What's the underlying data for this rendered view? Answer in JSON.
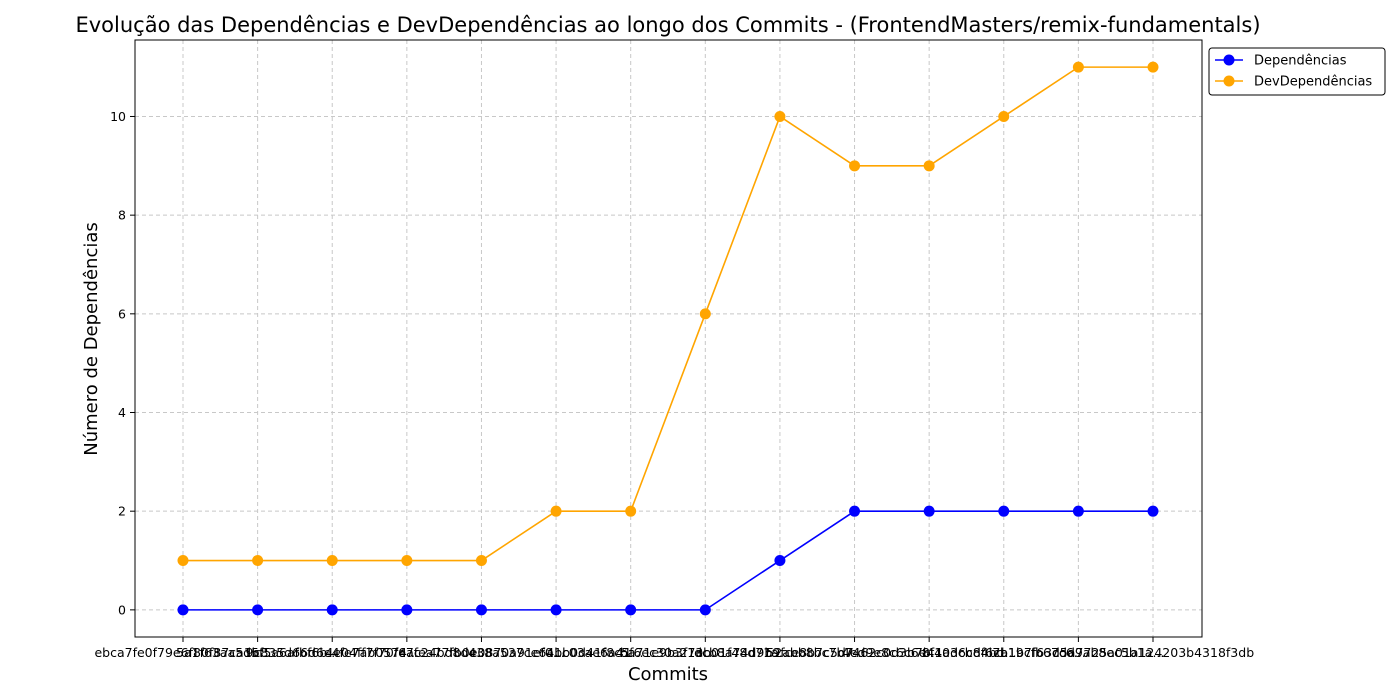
{
  "chart_data": {
    "type": "line",
    "title": "Evolução das Dependências e DevDependências ao longo dos Commits - (FrontendMasters/remix-fundamentals)",
    "xlabel": "Commits",
    "ylabel": "Número de Dependências",
    "ylim": [
      -0.55,
      11.55
    ],
    "yticks": [
      0,
      2,
      4,
      6,
      8,
      10
    ],
    "grid": true,
    "legend_position": "top-right-outside",
    "categories": [
      "ebca7fe0f79e6f80f87ca1b...",
      "5a1f63aa5d5f5a6afbf6b...",
      "9c835d66d6e4fe7ab0574...",
      "4e04ff7f70fe7c24bd8d4...",
      "6afea77fb0e0870a91ef0...",
      "e38a537ce6a1c03ae6a41...",
      "4bb0d41f8c5f6ec30a27e...",
      "ba71e9b3f13b01f48d71a...",
      "dcb8a74d9b9fce8b7c5d7...",
      "52abb8bc7b7462c0d3b7b...",
      "4ed9e8c6c6e41a3cb84bd...",
      "8f40d6cdf6cb19cfb67c6...",
      "7a1b7f63cdd9ab8ec5b1a...",
      "d5a7725a01a124203b4318f3db"
    ],
    "series": [
      {
        "name": "Dependências",
        "color": "#0000ff",
        "values": [
          0,
          0,
          0,
          0,
          0,
          0,
          0,
          0,
          1,
          2,
          2,
          2,
          2,
          2
        ]
      },
      {
        "name": "DevDependências",
        "color": "#ffa500",
        "values": [
          1,
          1,
          1,
          1,
          1,
          2,
          2,
          6,
          10,
          9,
          9,
          10,
          11,
          11
        ]
      }
    ]
  }
}
